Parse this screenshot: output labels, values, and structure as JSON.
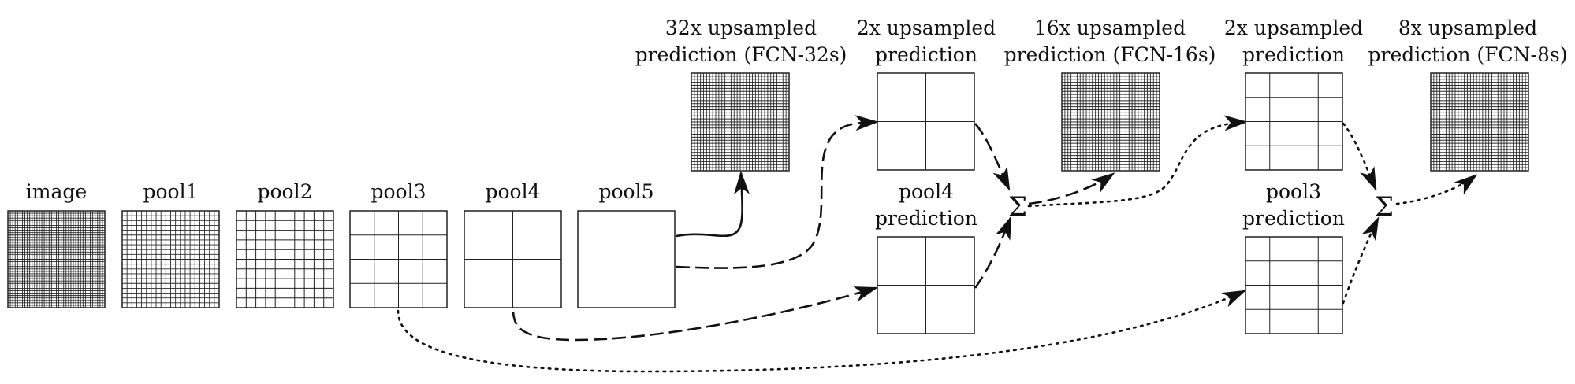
{
  "blocks": [
    {
      "id": "image",
      "label": [
        "image"
      ],
      "grid": 40
    },
    {
      "id": "pool1",
      "label": [
        "pool1"
      ],
      "grid": 20
    },
    {
      "id": "pool2",
      "label": [
        "pool2"
      ],
      "grid": 10
    },
    {
      "id": "pool3",
      "label": [
        "pool3"
      ],
      "grid": 4
    },
    {
      "id": "pool4",
      "label": [
        "pool4"
      ],
      "grid": 2
    },
    {
      "id": "pool5",
      "label": [
        "pool5"
      ],
      "grid": 1
    },
    {
      "id": "fcn32",
      "label": [
        "32x upsampled",
        "prediction (FCN-32s)"
      ],
      "grid": 32
    },
    {
      "id": "up2a",
      "label": [
        "2x upsampled",
        "prediction"
      ],
      "grid": 2
    },
    {
      "id": "pool4pred",
      "label": [
        "pool4",
        "prediction"
      ],
      "grid": 2
    },
    {
      "id": "fcn16",
      "label": [
        "16x upsampled",
        "prediction (FCN-16s)"
      ],
      "grid": 32
    },
    {
      "id": "up2b",
      "label": [
        "2x upsampled",
        "prediction"
      ],
      "grid": 4
    },
    {
      "id": "pool3pred",
      "label": [
        "pool3",
        "prediction"
      ],
      "grid": 4
    },
    {
      "id": "fcn8",
      "label": [
        "8x upsampled",
        "prediction (FCN-8s)"
      ],
      "grid": 32
    }
  ],
  "sum_nodes": [
    {
      "id": "sum1",
      "symbol": "Σ"
    },
    {
      "id": "sum2",
      "symbol": "Σ"
    }
  ],
  "connections": [
    {
      "from": "pool5",
      "to": "fcn32",
      "style": "solid"
    },
    {
      "from": "pool5",
      "to": "up2a",
      "style": "dashed"
    },
    {
      "from": "pool4",
      "to": "pool4pred",
      "style": "dashed"
    },
    {
      "from": "up2a",
      "to": "sum1",
      "style": "dashed"
    },
    {
      "from": "pool4pred",
      "to": "sum1",
      "style": "dashed"
    },
    {
      "from": "sum1",
      "to": "fcn16",
      "style": "dashed"
    },
    {
      "from": "sum1",
      "to": "up2b",
      "style": "dotted"
    },
    {
      "from": "pool3",
      "to": "pool3pred",
      "style": "dotted"
    },
    {
      "from": "up2b",
      "to": "sum2",
      "style": "dotted"
    },
    {
      "from": "pool3pred",
      "to": "sum2",
      "style": "dotted"
    },
    {
      "from": "sum2",
      "to": "fcn8",
      "style": "dotted"
    }
  ]
}
